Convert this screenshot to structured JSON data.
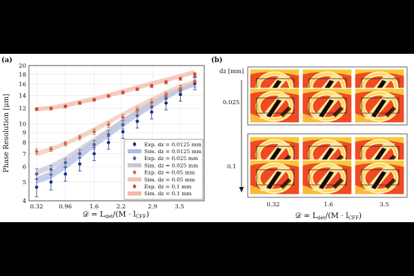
{
  "panel_a": {
    "label": "(a)",
    "ylabel": "Phase Resolution [μm]",
    "xlabel_main": "𝒟 = L",
    "xlabel_sub1": "det",
    "xlabel_mid": "/(M · l",
    "xlabel_sub2": "CFF",
    "xlabel_end": ")"
  },
  "panel_b": {
    "label": "(b)",
    "dz_header": "dz [mm]",
    "row_labels": [
      "0.025",
      "0.1"
    ],
    "col_labels": [
      "0.32",
      "1.6",
      "3.5"
    ],
    "xlabel_main": "𝒟 = L",
    "xlabel_sub1": "det",
    "xlabel_mid": "/(M · l",
    "xlabel_sub2": "CFF",
    "xlabel_end": ")"
  },
  "colors": {
    "s0125": "#1a2f8a",
    "s025": "#5c5f8e",
    "s05": "#c96a4a",
    "s1": "#d8432d",
    "band0125": "#aebde6",
    "band025": "#c5c6da",
    "band05": "#efc6b4",
    "band1": "#f2b8a8"
  },
  "chart_data": {
    "type": "scatter",
    "xlabel": "𝒟 = L_det/(M · l_CFF)",
    "ylabel": "Phase Resolution [μm]",
    "yscale": "log",
    "ylim": [
      4,
      20
    ],
    "xlim": [
      0.15,
      4.05
    ],
    "x_ticks": [
      "0.32",
      "0.96",
      "1.6",
      "2.2",
      "2.9",
      "3.5"
    ],
    "y_ticks": [
      4,
      5,
      6,
      7,
      8,
      9,
      10,
      12,
      14,
      16,
      18,
      20
    ],
    "grid": true,
    "legend_position": "bottom-right",
    "series": [
      {
        "name": "Exp. dz = 0.0125 mm",
        "color_key": "s0125",
        "x": [
          0.32,
          0.64,
          0.96,
          1.28,
          1.6,
          1.92,
          2.24,
          2.56,
          2.88,
          3.2,
          3.52,
          3.84
        ],
        "y": [
          4.7,
          5.0,
          5.5,
          6.2,
          7.0,
          8.0,
          9.1,
          10.3,
          11.5,
          12.8,
          14.2,
          16.2
        ],
        "err": [
          0.5,
          0.45,
          0.45,
          0.5,
          0.55,
          0.6,
          0.7,
          0.8,
          0.9,
          1.0,
          1.1,
          1.2
        ]
      },
      {
        "name": "Sim. dz = 0.0125 mm",
        "type": "band",
        "color_key": "band0125",
        "x": [
          0.32,
          0.64,
          0.96,
          1.28,
          1.6,
          1.92,
          2.24,
          2.56,
          2.88,
          3.2,
          3.52,
          3.84
        ],
        "lower": [
          4.9,
          5.2,
          5.8,
          6.6,
          7.5,
          8.5,
          9.6,
          10.8,
          12.0,
          13.3,
          14.6,
          15.6
        ],
        "upper": [
          5.3,
          5.7,
          6.4,
          7.3,
          8.3,
          9.4,
          10.6,
          11.9,
          13.2,
          14.4,
          15.6,
          16.4
        ]
      },
      {
        "name": "Exp. dz = 0.025 mm",
        "color_key": "s025",
        "x": [
          0.32,
          0.64,
          0.96,
          1.28,
          1.6,
          1.92,
          2.24,
          2.56,
          2.88,
          3.2,
          3.52,
          3.84
        ],
        "y": [
          5.5,
          5.8,
          6.3,
          7.0,
          7.8,
          8.8,
          9.9,
          11.0,
          12.2,
          13.5,
          14.9,
          16.5
        ],
        "err": [
          0.35,
          0.3,
          0.3,
          0.35,
          0.4,
          0.45,
          0.5,
          0.6,
          0.7,
          0.8,
          0.9,
          1.0
        ]
      },
      {
        "name": "Sim. dz = 0.025 mm",
        "type": "band",
        "color_key": "band025",
        "x": [
          0.32,
          0.64,
          0.96,
          1.28,
          1.6,
          1.92,
          2.24,
          2.56,
          2.88,
          3.2,
          3.52,
          3.84
        ],
        "lower": [
          5.4,
          5.8,
          6.3,
          7.1,
          7.9,
          8.9,
          10.0,
          11.2,
          12.4,
          13.6,
          14.8,
          15.8
        ],
        "upper": [
          5.8,
          6.2,
          6.8,
          7.6,
          8.5,
          9.5,
          10.7,
          11.9,
          13.1,
          14.3,
          15.5,
          16.5
        ]
      },
      {
        "name": "Exp. dz = 0.05 mm",
        "color_key": "s05",
        "x": [
          0.32,
          0.64,
          0.96,
          1.28,
          1.6,
          1.92,
          2.24,
          2.56,
          2.88,
          3.2,
          3.52,
          3.84
        ],
        "y": [
          7.2,
          7.4,
          7.9,
          8.5,
          9.1,
          9.9,
          10.8,
          11.8,
          12.9,
          14.0,
          15.2,
          16.6
        ],
        "err": [
          0.25,
          0.2,
          0.2,
          0.25,
          0.3,
          0.3,
          0.35,
          0.4,
          0.5,
          0.55,
          0.6,
          0.7
        ]
      },
      {
        "name": "Sim. dz = 0.05 mm",
        "type": "band",
        "color_key": "band05",
        "x": [
          0.32,
          0.64,
          0.96,
          1.28,
          1.6,
          1.92,
          2.24,
          2.56,
          2.88,
          3.2,
          3.52,
          3.84
        ],
        "lower": [
          6.8,
          7.2,
          7.7,
          8.3,
          9.0,
          9.9,
          10.9,
          11.9,
          13.0,
          14.2,
          15.3,
          16.3
        ],
        "upper": [
          7.2,
          7.6,
          8.1,
          8.8,
          9.6,
          10.5,
          11.5,
          12.6,
          13.7,
          14.9,
          16.0,
          16.9
        ]
      },
      {
        "name": "Exp. dz = 0.1 mm",
        "color_key": "s1",
        "x": [
          0.32,
          0.64,
          0.96,
          1.28,
          1.6,
          1.92,
          2.24,
          2.56,
          2.88,
          3.2,
          3.52,
          3.84
        ],
        "y": [
          11.9,
          12.0,
          12.3,
          12.8,
          13.3,
          13.9,
          14.5,
          15.1,
          15.7,
          16.4,
          17.1,
          18.0
        ],
        "err": [
          0.2,
          0.2,
          0.2,
          0.2,
          0.2,
          0.2,
          0.25,
          0.25,
          0.3,
          0.3,
          0.3,
          0.35
        ]
      },
      {
        "name": "Sim. dz = 0.1 mm",
        "type": "band",
        "color_key": "band1",
        "x": [
          0.32,
          0.64,
          0.96,
          1.28,
          1.6,
          1.92,
          2.24,
          2.56,
          2.88,
          3.2,
          3.52,
          3.84
        ],
        "lower": [
          11.6,
          11.8,
          12.1,
          12.6,
          13.1,
          13.7,
          14.3,
          15.0,
          15.7,
          16.4,
          17.2,
          18.0
        ],
        "upper": [
          12.2,
          12.4,
          12.8,
          13.3,
          13.8,
          14.4,
          15.1,
          15.8,
          16.6,
          17.3,
          18.1,
          19.0
        ]
      }
    ]
  }
}
